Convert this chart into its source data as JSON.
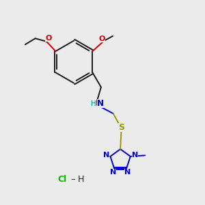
{
  "bg_color": "#ebebeb",
  "bond_color": "#1a1a1a",
  "N_color": "#0000cc",
  "O_color": "#cc0000",
  "S_color": "#999900",
  "Cl_color": "#00bb00",
  "H_color": "#008888",
  "figsize": [
    3.0,
    3.0
  ],
  "dpi": 100,
  "lw": 1.4,
  "fs": 7.5,
  "xlim": [
    0,
    10
  ],
  "ylim": [
    0,
    10
  ]
}
